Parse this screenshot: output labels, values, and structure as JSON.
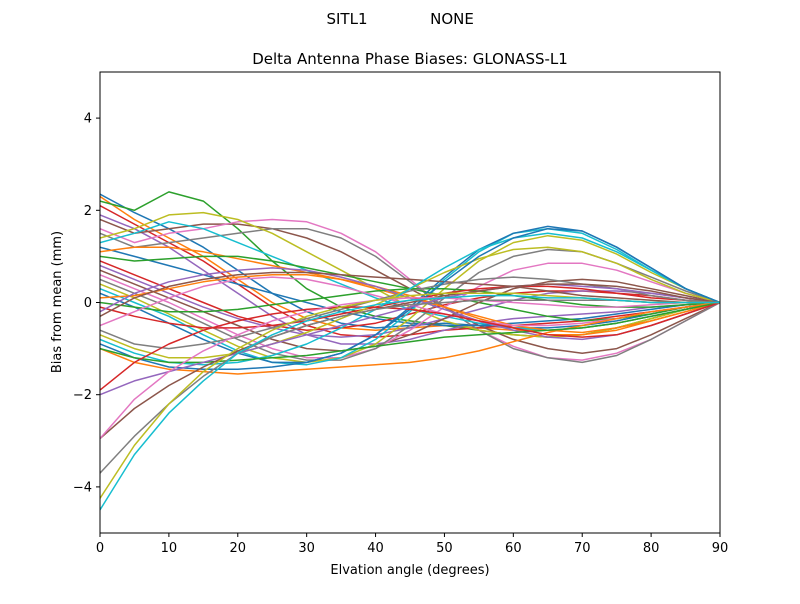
{
  "suptitle_left": "SITL1",
  "suptitle_right": "NONE",
  "chart_data": {
    "type": "line",
    "title": "Delta Antenna Phase Biases: GLONASS-L1",
    "xlabel": "Elvation angle (degrees)",
    "ylabel": "Bias from mean (mm)",
    "xlim": [
      0,
      90
    ],
    "ylim": [
      -5,
      5
    ],
    "xticks": [
      0,
      10,
      20,
      30,
      40,
      50,
      60,
      70,
      80,
      90
    ],
    "yticks": [
      -4,
      -2,
      0,
      2,
      4
    ],
    "grid": false,
    "colors": [
      "#1f77b4",
      "#ff7f0e",
      "#2ca02c",
      "#d62728",
      "#9467bd",
      "#8c564b",
      "#e377c2",
      "#7f7f7f",
      "#bcbd22",
      "#17becf"
    ],
    "x": [
      0,
      5,
      10,
      15,
      20,
      25,
      30,
      35,
      40,
      45,
      50,
      55,
      60,
      65,
      70,
      75,
      80,
      85,
      90
    ],
    "series": [
      {
        "values": [
          2.35,
          1.95,
          1.6,
          1.2,
          0.7,
          0.2,
          -0.2,
          -0.45,
          -0.55,
          -0.5,
          -0.45,
          -0.5,
          -0.55,
          -0.55,
          -0.5,
          -0.4,
          -0.25,
          -0.1,
          0
        ]
      },
      {
        "values": [
          2.3,
          1.8,
          1.4,
          1.0,
          0.5,
          0.0,
          -0.35,
          -0.55,
          -0.6,
          -0.55,
          -0.5,
          -0.55,
          -0.6,
          -0.6,
          -0.55,
          -0.45,
          -0.3,
          -0.15,
          0
        ]
      },
      {
        "values": [
          2.2,
          2.0,
          2.4,
          2.2,
          1.6,
          0.9,
          0.3,
          -0.1,
          -0.3,
          -0.4,
          -0.5,
          -0.6,
          -0.7,
          -0.75,
          -0.7,
          -0.55,
          -0.35,
          -0.15,
          0
        ]
      },
      {
        "values": [
          2.1,
          1.7,
          1.3,
          0.9,
          0.4,
          -0.1,
          -0.5,
          -0.7,
          -0.75,
          -0.7,
          -0.6,
          -0.55,
          -0.5,
          -0.45,
          -0.4,
          -0.3,
          -0.2,
          -0.1,
          0
        ]
      },
      {
        "values": [
          1.9,
          1.6,
          1.2,
          0.7,
          0.2,
          -0.3,
          -0.7,
          -0.9,
          -0.9,
          -0.8,
          -0.6,
          -0.45,
          -0.35,
          -0.3,
          -0.25,
          -0.2,
          -0.1,
          -0.05,
          0
        ]
      },
      {
        "values": [
          1.8,
          1.5,
          1.6,
          1.7,
          1.7,
          1.6,
          1.4,
          1.1,
          0.7,
          0.3,
          -0.1,
          -0.5,
          -0.8,
          -1.0,
          -1.1,
          -1.0,
          -0.7,
          -0.35,
          0
        ]
      },
      {
        "values": [
          1.6,
          1.3,
          1.5,
          1.6,
          1.75,
          1.8,
          1.75,
          1.5,
          1.1,
          0.5,
          -0.1,
          -0.6,
          -0.95,
          -1.2,
          -1.25,
          -1.1,
          -0.8,
          -0.4,
          0
        ]
      },
      {
        "values": [
          1.5,
          1.2,
          1.3,
          1.4,
          1.5,
          1.6,
          1.6,
          1.4,
          1.0,
          0.45,
          -0.1,
          -0.6,
          -1.0,
          -1.2,
          -1.3,
          -1.15,
          -0.8,
          -0.4,
          0
        ]
      },
      {
        "values": [
          1.4,
          1.6,
          1.9,
          1.95,
          1.8,
          1.5,
          1.1,
          0.7,
          0.3,
          -0.1,
          -0.4,
          -0.6,
          -0.7,
          -0.75,
          -0.7,
          -0.55,
          -0.35,
          -0.15,
          0
        ]
      },
      {
        "values": [
          1.3,
          1.5,
          1.75,
          1.6,
          1.3,
          1.0,
          0.7,
          0.4,
          0.1,
          -0.15,
          -0.3,
          -0.45,
          -0.55,
          -0.6,
          -0.55,
          -0.45,
          -0.3,
          -0.15,
          0
        ]
      },
      {
        "values": [
          1.2,
          1.0,
          0.8,
          0.6,
          0.4,
          0.2,
          0.0,
          -0.2,
          -0.35,
          -0.45,
          -0.5,
          -0.5,
          -0.45,
          -0.4,
          -0.35,
          -0.25,
          -0.15,
          -0.05,
          0
        ]
      },
      {
        "values": [
          1.1,
          1.2,
          1.2,
          1.1,
          0.95,
          0.8,
          0.65,
          0.5,
          0.3,
          0.1,
          -0.1,
          -0.3,
          -0.5,
          -0.6,
          -0.65,
          -0.55,
          -0.4,
          -0.2,
          0
        ]
      },
      {
        "values": [
          1.0,
          0.9,
          0.95,
          1.0,
          1.0,
          0.9,
          0.75,
          0.6,
          0.45,
          0.3,
          0.15,
          0.0,
          -0.15,
          -0.3,
          -0.4,
          -0.35,
          -0.25,
          -0.1,
          0
        ]
      },
      {
        "values": [
          0.9,
          0.6,
          0.3,
          0.0,
          -0.3,
          -0.5,
          -0.6,
          -0.55,
          -0.45,
          -0.25,
          -0.05,
          0.1,
          0.2,
          0.25,
          0.25,
          0.2,
          0.15,
          0.05,
          0
        ]
      },
      {
        "values": [
          0.8,
          0.5,
          0.2,
          -0.1,
          -0.35,
          -0.55,
          -0.7,
          -0.75,
          -0.7,
          -0.55,
          -0.35,
          -0.15,
          0.05,
          0.2,
          0.25,
          0.25,
          0.2,
          0.1,
          0
        ]
      },
      {
        "values": [
          0.7,
          0.4,
          0.1,
          -0.2,
          -0.5,
          -0.8,
          -1.0,
          -1.05,
          -0.95,
          -0.7,
          -0.35,
          0.0,
          0.3,
          0.45,
          0.5,
          0.45,
          0.3,
          0.15,
          0
        ]
      },
      {
        "values": [
          0.6,
          0.3,
          0.0,
          -0.35,
          -0.7,
          -1.0,
          -1.2,
          -1.2,
          -1.0,
          -0.6,
          -0.1,
          0.35,
          0.7,
          0.85,
          0.85,
          0.7,
          0.45,
          0.2,
          0
        ]
      },
      {
        "values": [
          0.5,
          0.2,
          -0.1,
          -0.45,
          -0.8,
          -1.1,
          -1.25,
          -1.25,
          -1.0,
          -0.5,
          0.1,
          0.65,
          1.0,
          1.15,
          1.1,
          0.85,
          0.55,
          0.25,
          0
        ]
      },
      {
        "values": [
          0.4,
          0.1,
          -0.25,
          -0.6,
          -0.95,
          -1.2,
          -1.3,
          -1.2,
          -0.9,
          -0.35,
          0.3,
          0.9,
          1.3,
          1.45,
          1.35,
          1.05,
          0.65,
          0.3,
          0
        ]
      },
      {
        "values": [
          0.3,
          0.0,
          -0.3,
          -0.7,
          -1.05,
          -1.3,
          -1.35,
          -1.2,
          -0.8,
          -0.2,
          0.5,
          1.1,
          1.5,
          1.6,
          1.5,
          1.15,
          0.7,
          0.3,
          0
        ]
      },
      {
        "values": [
          0.2,
          -0.1,
          -0.45,
          -0.8,
          -1.1,
          -1.3,
          -1.3,
          -1.1,
          -0.7,
          -0.1,
          0.55,
          1.15,
          1.5,
          1.65,
          1.55,
          1.2,
          0.75,
          0.3,
          0
        ]
      },
      {
        "values": [
          0.1,
          0.15,
          0.3,
          0.45,
          0.55,
          0.6,
          0.6,
          0.5,
          0.35,
          0.15,
          -0.1,
          -0.35,
          -0.55,
          -0.7,
          -0.7,
          -0.6,
          -0.4,
          -0.2,
          0
        ]
      },
      {
        "values": [
          0.0,
          -0.1,
          -0.2,
          -0.2,
          -0.15,
          -0.05,
          0.05,
          0.15,
          0.25,
          0.3,
          0.3,
          0.25,
          0.15,
          0.05,
          -0.05,
          -0.1,
          -0.1,
          -0.05,
          0
        ]
      },
      {
        "values": [
          -0.1,
          -0.3,
          -0.45,
          -0.55,
          -0.55,
          -0.5,
          -0.4,
          -0.25,
          -0.1,
          0.05,
          0.2,
          0.3,
          0.35,
          0.35,
          0.3,
          0.2,
          0.1,
          0.05,
          0
        ]
      },
      {
        "values": [
          -0.2,
          0.2,
          0.45,
          0.6,
          0.7,
          0.75,
          0.7,
          0.55,
          0.35,
          0.1,
          -0.15,
          -0.4,
          -0.6,
          -0.75,
          -0.8,
          -0.7,
          -0.5,
          -0.25,
          0
        ]
      },
      {
        "values": [
          -0.3,
          0.1,
          0.35,
          0.5,
          0.6,
          0.65,
          0.65,
          0.6,
          0.55,
          0.5,
          0.45,
          0.4,
          0.35,
          0.25,
          0.15,
          0.1,
          0.05,
          0.0,
          0
        ]
      },
      {
        "values": [
          -0.5,
          -0.2,
          0.1,
          0.35,
          0.5,
          0.55,
          0.5,
          0.35,
          0.15,
          -0.05,
          -0.25,
          -0.4,
          -0.5,
          -0.5,
          -0.45,
          -0.35,
          -0.2,
          -0.1,
          0
        ]
      },
      {
        "values": [
          -0.6,
          -0.9,
          -1.0,
          -0.9,
          -0.75,
          -0.55,
          -0.35,
          -0.15,
          0.05,
          0.25,
          0.4,
          0.5,
          0.55,
          0.5,
          0.4,
          0.3,
          0.15,
          0.05,
          0
        ]
      },
      {
        "values": [
          -0.7,
          -1.0,
          -1.2,
          -1.2,
          -1.1,
          -0.9,
          -0.65,
          -0.35,
          -0.05,
          0.3,
          0.65,
          0.95,
          1.15,
          1.2,
          1.1,
          0.85,
          0.5,
          0.2,
          0
        ]
      },
      {
        "values": [
          -0.8,
          -1.1,
          -1.3,
          -1.35,
          -1.3,
          -1.15,
          -0.9,
          -0.55,
          -0.15,
          0.3,
          0.75,
          1.15,
          1.4,
          1.5,
          1.4,
          1.1,
          0.7,
          0.3,
          0
        ]
      },
      {
        "values": [
          -0.9,
          -1.2,
          -1.4,
          -1.45,
          -1.45,
          -1.4,
          -1.3,
          -1.1,
          -0.7,
          -0.15,
          0.45,
          1.0,
          1.4,
          1.6,
          1.55,
          1.2,
          0.75,
          0.3,
          0
        ]
      },
      {
        "values": [
          -1.0,
          -1.3,
          -1.45,
          -1.5,
          -1.55,
          -1.5,
          -1.45,
          -1.4,
          -1.35,
          -1.3,
          -1.2,
          -1.05,
          -0.85,
          -0.65,
          -0.5,
          -0.35,
          -0.2,
          -0.1,
          0
        ]
      },
      {
        "values": [
          -1.0,
          -1.2,
          -1.3,
          -1.3,
          -1.25,
          -1.2,
          -1.15,
          -1.05,
          -0.95,
          -0.85,
          -0.75,
          -0.7,
          -0.65,
          -0.6,
          -0.55,
          -0.45,
          -0.3,
          -0.15,
          0
        ]
      },
      {
        "values": [
          -1.9,
          -1.3,
          -0.9,
          -0.6,
          -0.4,
          -0.25,
          -0.15,
          -0.1,
          -0.1,
          -0.15,
          -0.25,
          -0.4,
          -0.55,
          -0.7,
          -0.75,
          -0.7,
          -0.5,
          -0.25,
          0
        ]
      },
      {
        "values": [
          -2.0,
          -1.7,
          -1.5,
          -1.3,
          -1.1,
          -0.9,
          -0.7,
          -0.5,
          -0.3,
          -0.1,
          0.1,
          0.25,
          0.35,
          0.4,
          0.35,
          0.3,
          0.2,
          0.1,
          0
        ]
      },
      {
        "values": [
          -2.95,
          -2.3,
          -1.8,
          -1.4,
          -1.05,
          -0.75,
          -0.5,
          -0.3,
          -0.15,
          0.0,
          0.15,
          0.25,
          0.35,
          0.4,
          0.4,
          0.35,
          0.25,
          0.1,
          0
        ]
      },
      {
        "values": [
          -2.95,
          -2.1,
          -1.5,
          -1.05,
          -0.7,
          -0.4,
          -0.2,
          -0.05,
          0.05,
          0.1,
          0.1,
          0.05,
          0.0,
          -0.05,
          -0.1,
          -0.1,
          -0.05,
          0.0,
          0
        ]
      },
      {
        "values": [
          -3.7,
          -2.9,
          -2.2,
          -1.6,
          -1.1,
          -0.75,
          -0.5,
          -0.3,
          -0.15,
          -0.05,
          0.0,
          0.05,
          0.05,
          0.05,
          0.05,
          0.05,
          0.0,
          0.0,
          0
        ]
      },
      {
        "values": [
          -4.25,
          -3.1,
          -2.2,
          -1.5,
          -1.0,
          -0.6,
          -0.3,
          -0.1,
          0.05,
          0.15,
          0.2,
          0.2,
          0.2,
          0.15,
          0.1,
          0.05,
          0.0,
          0.0,
          0
        ]
      },
      {
        "values": [
          -4.5,
          -3.3,
          -2.4,
          -1.7,
          -1.1,
          -0.7,
          -0.4,
          -0.2,
          -0.05,
          0.05,
          0.1,
          0.15,
          0.15,
          0.1,
          0.1,
          0.05,
          0.0,
          0.0,
          0
        ]
      }
    ]
  }
}
